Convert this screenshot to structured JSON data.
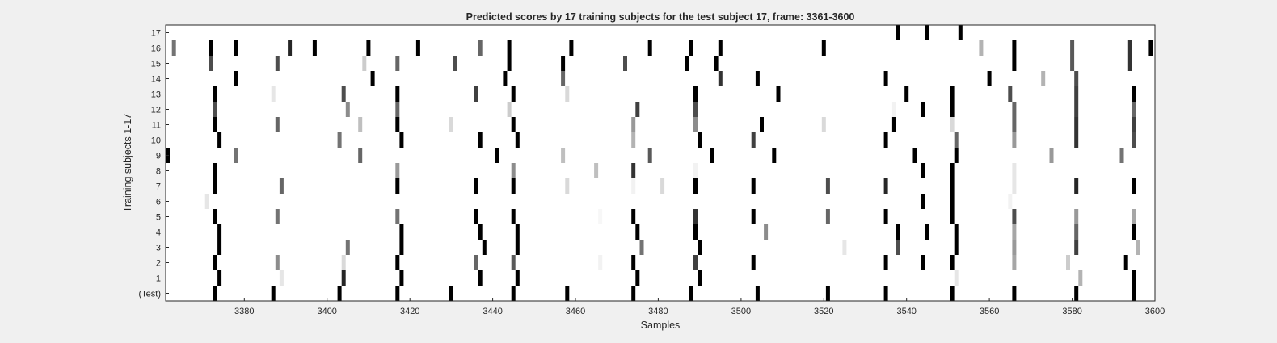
{
  "chart_data": {
    "type": "heatmap",
    "title": "Predicted scores by 17 training subjects for the test subject 17, frame: 3361-3600",
    "xlabel": "Samples",
    "ylabel": "Training subjects 1-17",
    "xlim": [
      3361,
      3600
    ],
    "x_ticks": [
      3380,
      3400,
      3420,
      3440,
      3460,
      3480,
      3500,
      3520,
      3540,
      3560,
      3580,
      3600
    ],
    "rows": [
      "(Test)",
      "1",
      "2",
      "3",
      "4",
      "5",
      "6",
      "7",
      "8",
      "9",
      "10",
      "11",
      "12",
      "13",
      "14",
      "15",
      "16",
      "17"
    ],
    "value_range": [
      0,
      1
    ],
    "colormap": "grayscale (white = 0, black = 1)",
    "grid": false,
    "events": [
      {
        "row": "(Test)",
        "x": [
          3373,
          3387,
          3403,
          3417,
          3430,
          3445,
          3458,
          3474,
          3488,
          3504,
          3521,
          3535,
          3551,
          3566,
          3581,
          3595
        ],
        "v": [
          1,
          1,
          1,
          1,
          1,
          1,
          1,
          1,
          1,
          1,
          1,
          1,
          1,
          1,
          1,
          1
        ]
      },
      {
        "row": "1",
        "x": [
          3374,
          3389,
          3404,
          3418,
          3437,
          3446,
          3475,
          3490,
          3552,
          3582,
          3595
        ],
        "v": [
          1,
          0.1,
          0.85,
          1,
          1,
          1,
          1,
          1,
          0.1,
          0.3,
          1
        ]
      },
      {
        "row": "2",
        "x": [
          3373,
          3388,
          3404,
          3417,
          3436,
          3445,
          3466,
          3474,
          3489,
          3503,
          3535,
          3544,
          3551,
          3566,
          3579,
          3593
        ],
        "v": [
          1,
          0.45,
          0.15,
          1,
          0.6,
          0.65,
          0.05,
          1,
          0.75,
          1,
          1,
          1,
          1,
          0.35,
          0.2,
          1
        ]
      },
      {
        "row": "3",
        "x": [
          3374,
          3405,
          3418,
          3438,
          3446,
          3476,
          3490,
          3525,
          3538,
          3552,
          3566,
          3581,
          3596
        ],
        "v": [
          1,
          0.55,
          1,
          1,
          1,
          0.55,
          1,
          0.1,
          0.7,
          1,
          0.4,
          0.75,
          0.3
        ]
      },
      {
        "row": "4",
        "x": [
          3374,
          3418,
          3437,
          3446,
          3475,
          3489,
          3506,
          3538,
          3545,
          3552,
          3566,
          3581,
          3595
        ],
        "v": [
          1,
          1,
          1,
          1,
          1,
          1,
          0.45,
          1,
          1,
          1,
          0.35,
          0.6,
          1
        ]
      },
      {
        "row": "5",
        "x": [
          3373,
          3388,
          3417,
          3436,
          3445,
          3466,
          3474,
          3489,
          3503,
          3521,
          3535,
          3551,
          3566,
          3581,
          3595
        ],
        "v": [
          1,
          0.55,
          0.55,
          1,
          1,
          0.03,
          1,
          0.8,
          1,
          0.6,
          1,
          1,
          0.7,
          0.4,
          0.35
        ]
      },
      {
        "row": "6",
        "x": [
          3371,
          3544,
          3551,
          3565
        ],
        "v": [
          0.1,
          1,
          1,
          0.05
        ]
      },
      {
        "row": "7",
        "x": [
          3373,
          3389,
          3417,
          3436,
          3445,
          3458,
          3474,
          3481,
          3489,
          3503,
          3521,
          3535,
          3551,
          3566,
          3581,
          3595
        ],
        "v": [
          1,
          0.6,
          1,
          1,
          1,
          0.15,
          0.05,
          0.15,
          1,
          1,
          0.7,
          0.85,
          1,
          0.1,
          0.85,
          1
        ]
      },
      {
        "row": "8",
        "x": [
          3373,
          3417,
          3445,
          3465,
          3474,
          3489,
          3544,
          3551,
          3566
        ],
        "v": [
          1,
          0.4,
          0.45,
          0.25,
          0.8,
          0.05,
          1,
          1,
          0.1
        ]
      },
      {
        "row": "9",
        "x": [
          3361,
          3378,
          3408,
          3441,
          3457,
          3478,
          3493,
          3508,
          3542,
          3552,
          3575,
          3592
        ],
        "v": [
          1,
          0.55,
          0.6,
          1,
          0.25,
          0.65,
          1,
          1,
          1,
          1,
          0.4,
          0.55
        ]
      },
      {
        "row": "10",
        "x": [
          3374,
          3403,
          3418,
          3437,
          3446,
          3474,
          3490,
          3503,
          3535,
          3552,
          3566,
          3581,
          3595
        ],
        "v": [
          1,
          0.55,
          1,
          1,
          1,
          0.3,
          1,
          0.75,
          1,
          0.6,
          0.4,
          0.8,
          0.7
        ]
      },
      {
        "row": "11",
        "x": [
          3373,
          3388,
          3408,
          3417,
          3430,
          3445,
          3474,
          3489,
          3505,
          3520,
          3537,
          3551,
          3566,
          3581,
          3595
        ],
        "v": [
          1,
          0.6,
          0.25,
          1,
          0.15,
          1,
          0.4,
          0.45,
          1,
          0.15,
          1,
          0.15,
          0.6,
          0.8,
          0.75
        ]
      },
      {
        "row": "12",
        "x": [
          3373,
          3405,
          3417,
          3444,
          3475,
          3489,
          3537,
          3544,
          3551,
          3566,
          3581,
          3595
        ],
        "v": [
          0.7,
          0.45,
          0.6,
          0.2,
          0.75,
          0.7,
          0.05,
          1,
          1,
          0.6,
          0.75,
          0.6
        ]
      },
      {
        "row": "13",
        "x": [
          3373,
          3387,
          3404,
          3417,
          3436,
          3445,
          3458,
          3489,
          3509,
          3540,
          3551,
          3565,
          3581,
          3595
        ],
        "v": [
          1,
          0.1,
          0.7,
          1,
          0.75,
          1,
          0.15,
          1,
          1,
          1,
          1,
          0.7,
          0.75,
          1
        ]
      },
      {
        "row": "14",
        "x": [
          3378,
          3411,
          3443,
          3457,
          3495,
          3504,
          3535,
          3560,
          3573,
          3581
        ],
        "v": [
          1,
          1,
          1,
          0.6,
          0.8,
          1,
          1,
          1,
          0.3,
          0.7
        ]
      },
      {
        "row": "15",
        "x": [
          3372,
          3388,
          3409,
          3417,
          3431,
          3444,
          3457,
          3472,
          3487,
          3494,
          3566,
          3580,
          3594
        ],
        "v": [
          0.7,
          0.7,
          0.2,
          0.6,
          0.7,
          1,
          1,
          0.7,
          1,
          1,
          1,
          0.65,
          0.8
        ]
      },
      {
        "row": "16",
        "x": [
          3363,
          3372,
          3378,
          3391,
          3397,
          3410,
          3422,
          3437,
          3444,
          3459,
          3478,
          3488,
          3495,
          3520,
          3558,
          3566,
          3580,
          3594,
          3599
        ],
        "v": [
          0.55,
          1,
          1,
          0.85,
          1,
          1,
          1,
          0.6,
          1,
          1,
          1,
          1,
          1,
          1,
          0.3,
          1,
          0.65,
          0.8,
          1
        ]
      },
      {
        "row": "17",
        "x": [
          3538,
          3545,
          3553
        ],
        "v": [
          1,
          1,
          1
        ]
      }
    ]
  }
}
